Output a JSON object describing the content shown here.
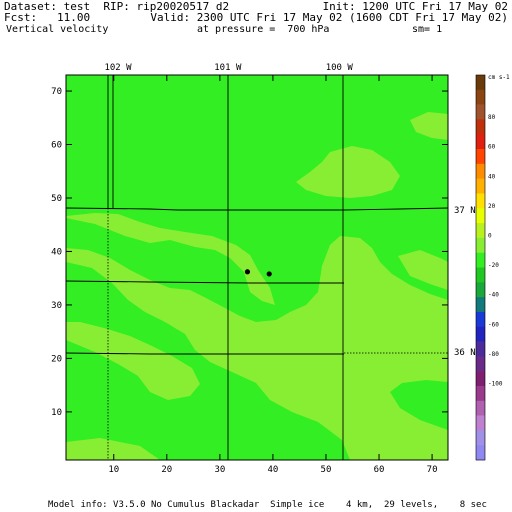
{
  "header": {
    "dataset": "Dataset: test  RIP: rip20020517 d2",
    "init": "Init: 1200 UTC Fri 17 May 02",
    "fcst": "Fcst:   11.00",
    "valid": "Valid: 2300 UTC Fri 17 May 02 (1600 CDT Fri 17 May 02)",
    "field": "Vertical velocity",
    "pressure": "at pressure =  700 hPa",
    "smoothing": "sm= 1"
  },
  "footer": {
    "model_info": "Model info: V3.5.0 No Cumulus Blackadar  Simple ice    4 km,  29 levels,    8 sec"
  },
  "colors": {
    "field_main": "#33ee22",
    "field_light": "#88ee33",
    "frame": "#000000"
  },
  "chart_data": {
    "type": "heatmap",
    "field": "Vertical velocity",
    "units": "cm s-1",
    "xlim": [
      1,
      73
    ],
    "ylim": [
      1,
      73
    ],
    "x_ticks": [
      10,
      20,
      30,
      40,
      50,
      60,
      70
    ],
    "y_ticks": [
      10,
      20,
      30,
      40,
      50,
      60,
      70
    ],
    "longitude_labels": [
      {
        "label": "102 W",
        "x": 10.8
      },
      {
        "label": "101 W",
        "x": 31.5
      },
      {
        "label": "100 W",
        "x": 52.5
      }
    ],
    "latitude_labels": [
      {
        "label": "37 N",
        "y": 47.8
      },
      {
        "label": "36 N",
        "y": 21.2
      }
    ],
    "colorbar": {
      "units_label": "cm s-1",
      "tick_labels": [
        "80",
        "60",
        "40",
        "20",
        "0",
        "-20",
        "-40",
        "-60",
        "-80",
        "-100"
      ],
      "colors": [
        "#6b3a0a",
        "#8b4513",
        "#a0522d",
        "#c0300a",
        "#e02010",
        "#ff4500",
        "#ff8c00",
        "#ffb000",
        "#ffe000",
        "#e8ff00",
        "#b8f020",
        "#88ee33",
        "#33ee22",
        "#22c822",
        "#1aa83a",
        "#127a7a",
        "#1a3ad8",
        "#2323c0",
        "#4b2a9a",
        "#6a2a8a",
        "#7f1f6f",
        "#9a3a8a",
        "#b060b0",
        "#c080d0",
        "#a090e8",
        "#8f88f0"
      ]
    },
    "dominant_value_range": [
      -10,
      10
    ],
    "markers": [
      {
        "x": 35.2,
        "y": 36.2
      },
      {
        "x": 39.3,
        "y": 35.8
      }
    ]
  }
}
